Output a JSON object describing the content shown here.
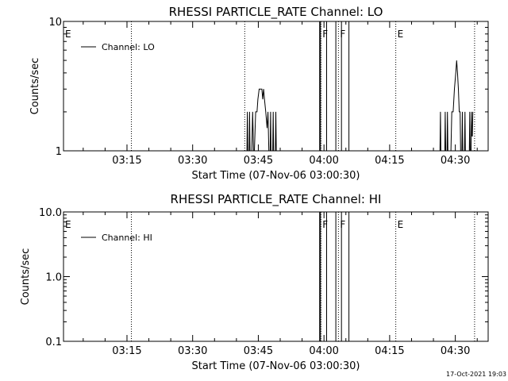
{
  "chart_data": [
    {
      "type": "line",
      "title": "RHESSI PARTICLE_RATE Channel: LO",
      "xlabel": "Start Time (07-Nov-06 03:00:30)",
      "ylabel": "Counts/sec",
      "yscale": "log",
      "xlim_minutes_after_03:00": [
        0.5,
        97.5
      ],
      "ylim": [
        1,
        10
      ],
      "yticks": [
        {
          "v": 1,
          "label": "1"
        },
        {
          "v": 10,
          "label": "10"
        }
      ],
      "xticks": [
        {
          "v": 15,
          "label": "03:15"
        },
        {
          "v": 30,
          "label": "03:30"
        },
        {
          "v": 45,
          "label": "03:45"
        },
        {
          "v": 60,
          "label": "04:00"
        },
        {
          "v": 75,
          "label": "04:15"
        },
        {
          "v": 90,
          "label": "04:30"
        }
      ],
      "legend": "Channel: LO",
      "legend_position": "top-left",
      "markers": [
        {
          "label": "E",
          "t": 0.5,
          "dotted": false
        },
        {
          "label": "",
          "t": 16.0,
          "dotted": true
        },
        {
          "label": "",
          "t": 41.9,
          "dotted": true
        },
        {
          "label": "F",
          "t": 59.3,
          "dotted": true
        },
        {
          "label": "F",
          "t": 63.3,
          "dotted": true
        },
        {
          "label": "E",
          "t": 76.4,
          "dotted": true
        },
        {
          "label": "",
          "t": 94.4,
          "dotted": true
        }
      ],
      "series": [
        {
          "points": [
            [
              42.4,
              1
            ],
            [
              42.5,
              2
            ],
            [
              42.6,
              1
            ],
            [
              42.9,
              1
            ],
            [
              43.0,
              2
            ],
            [
              43.1,
              1
            ],
            [
              43.5,
              1
            ],
            [
              43.7,
              2
            ],
            [
              43.9,
              1
            ],
            [
              44.1,
              1
            ],
            [
              44.4,
              2
            ],
            [
              44.7,
              2
            ],
            [
              44.9,
              2.5
            ],
            [
              45.2,
              3
            ],
            [
              45.5,
              3
            ],
            [
              45.8,
              3
            ],
            [
              46.0,
              2.5
            ],
            [
              46.2,
              3
            ],
            [
              46.4,
              2.5
            ],
            [
              46.7,
              2
            ],
            [
              47.0,
              1.5
            ],
            [
              47.2,
              2
            ],
            [
              47.4,
              1
            ],
            [
              47.7,
              1
            ],
            [
              47.8,
              2
            ],
            [
              47.9,
              1
            ],
            [
              48.3,
              1
            ],
            [
              48.4,
              2
            ],
            [
              48.5,
              1
            ],
            [
              48.9,
              1
            ],
            [
              49.0,
              2
            ],
            [
              49.1,
              1
            ],
            [
              57.0,
              1
            ],
            [
              59.0,
              1
            ],
            [
              59.0,
              10
            ],
            [
              59.2,
              10
            ],
            [
              59.2,
              1
            ],
            [
              60.6,
              1
            ],
            [
              60.6,
              10
            ],
            [
              62.7,
              10
            ],
            [
              62.7,
              1
            ],
            [
              64.0,
              1
            ],
            [
              64.0,
              10
            ],
            [
              65.7,
              10
            ],
            [
              65.7,
              1
            ],
            [
              86.0,
              1
            ],
            [
              86.5,
              1
            ],
            [
              86.6,
              2
            ],
            [
              86.7,
              1
            ],
            [
              87.6,
              1
            ],
            [
              87.7,
              2
            ],
            [
              87.8,
              1
            ],
            [
              88.1,
              1
            ],
            [
              88.2,
              2
            ],
            [
              88.3,
              1
            ],
            [
              89.0,
              1
            ],
            [
              89.2,
              2
            ],
            [
              89.5,
              2
            ],
            [
              89.8,
              3
            ],
            [
              90.1,
              4
            ],
            [
              90.3,
              5
            ],
            [
              90.5,
              4
            ],
            [
              90.7,
              3
            ],
            [
              90.9,
              2
            ],
            [
              91.1,
              2
            ],
            [
              91.2,
              1
            ],
            [
              91.5,
              1
            ],
            [
              91.6,
              2
            ],
            [
              91.7,
              1
            ],
            [
              92.1,
              1
            ],
            [
              92.2,
              2
            ],
            [
              92.3,
              1
            ],
            [
              93.2,
              1
            ],
            [
              93.3,
              2
            ],
            [
              93.4,
              1
            ],
            [
              93.6,
              1
            ],
            [
              93.7,
              2
            ],
            [
              93.8,
              1.3
            ],
            [
              93.9,
              1.3
            ],
            [
              94.0,
              2
            ]
          ]
        }
      ]
    },
    {
      "type": "line",
      "title": "RHESSI PARTICLE_RATE Channel: HI",
      "xlabel": "Start Time (07-Nov-06 03:00:30)",
      "ylabel": "Counts/sec",
      "yscale": "log",
      "xlim_minutes_after_03:00": [
        0.5,
        97.5
      ],
      "ylim": [
        0.1,
        10
      ],
      "yticks": [
        {
          "v": 0.1,
          "label": "0.1"
        },
        {
          "v": 1,
          "label": "1.0"
        },
        {
          "v": 10,
          "label": "10.0"
        }
      ],
      "xticks": [
        {
          "v": 15,
          "label": "03:15"
        },
        {
          "v": 30,
          "label": "03:30"
        },
        {
          "v": 45,
          "label": "03:45"
        },
        {
          "v": 60,
          "label": "04:00"
        },
        {
          "v": 75,
          "label": "04:15"
        },
        {
          "v": 90,
          "label": "04:30"
        }
      ],
      "legend": "Channel: HI",
      "legend_position": "top-left",
      "markers": [
        {
          "label": "E",
          "t": 0.5,
          "dotted": false
        },
        {
          "label": "",
          "t": 16.0,
          "dotted": true
        },
        {
          "label": "F",
          "t": 59.3,
          "dotted": true
        },
        {
          "label": "F",
          "t": 63.3,
          "dotted": true
        },
        {
          "label": "E",
          "t": 76.4,
          "dotted": true
        },
        {
          "label": "",
          "t": 94.4,
          "dotted": true
        }
      ],
      "series": [
        {
          "points": [
            [
              59.0,
              0.1
            ],
            [
              59.0,
              10
            ],
            [
              59.2,
              10
            ],
            [
              59.2,
              0.1
            ],
            [
              60.6,
              0.1
            ],
            [
              60.6,
              10
            ],
            [
              62.7,
              10
            ],
            [
              62.7,
              0.1
            ],
            [
              64.0,
              0.1
            ],
            [
              64.0,
              10
            ],
            [
              65.7,
              10
            ],
            [
              65.7,
              0.1
            ]
          ]
        }
      ]
    }
  ],
  "footer": {
    "timestamp": "17-Oct-2021 19:03"
  }
}
